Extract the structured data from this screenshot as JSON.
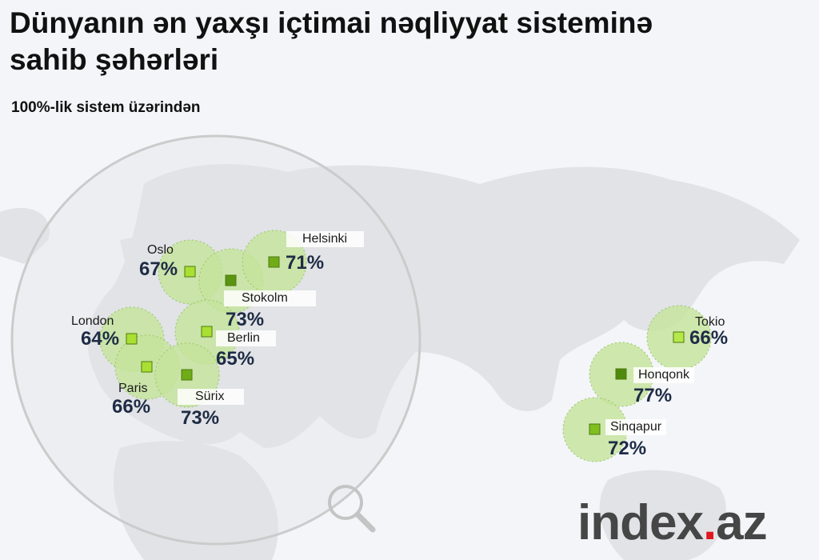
{
  "header": {
    "title": "Dünyanın ən yaxşı içtimai nəqliyyat sisteminə sahib şəhərləri",
    "subtitle": "100%-lik sistem üzərindən"
  },
  "cities": [
    {
      "name": "Oslo",
      "score": "67%"
    },
    {
      "name": "Stokolm",
      "score": "73%"
    },
    {
      "name": "Helsinki",
      "score": "71%"
    },
    {
      "name": "London",
      "score": "64%"
    },
    {
      "name": "Berlin",
      "score": "65%"
    },
    {
      "name": "Paris",
      "score": "66%"
    },
    {
      "name": "Sürix",
      "score": "73%"
    },
    {
      "name": "Tokio",
      "score": "66%"
    },
    {
      "name": "Honqonk",
      "score": "77%"
    },
    {
      "name": "Sinqapur",
      "score": "72%"
    }
  ],
  "logo": {
    "main": "index",
    "dot": ".",
    "tld": "az"
  },
  "colors": {
    "land": "#e0e2e5",
    "zone": "#c4e49a",
    "marker_light": "#a9e032",
    "marker_mid": "#7fbf1e",
    "marker_dark": "#5a9410",
    "text": "#1e2c45",
    "logo_dot": "#e0171f"
  }
}
